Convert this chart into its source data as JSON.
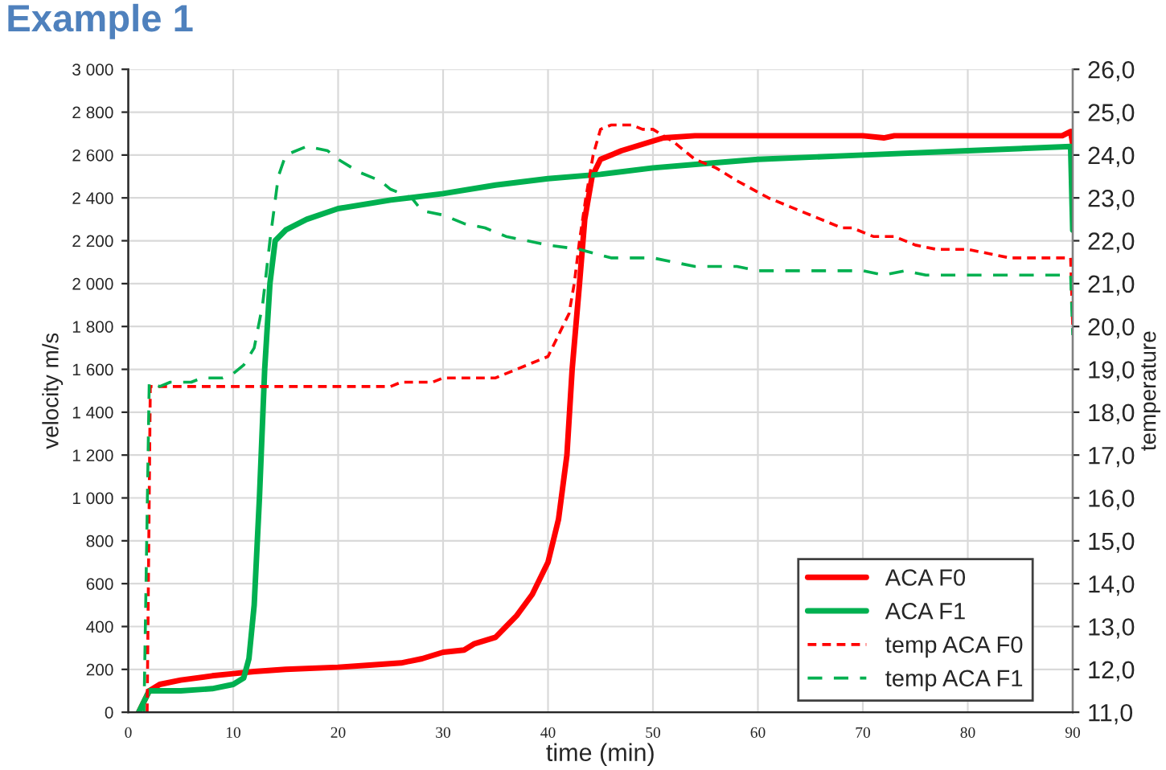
{
  "chart_data": {
    "type": "line",
    "title": "Example 1",
    "xlabel": "time (min)",
    "ylabel": "velocity m/s",
    "y2label": "temperature",
    "xlim": [
      0,
      90
    ],
    "xticks": [
      0,
      10,
      20,
      30,
      40,
      50,
      60,
      70,
      80,
      90
    ],
    "ylim": [
      0,
      3000
    ],
    "yticks": [
      0,
      200,
      400,
      600,
      800,
      {
        "value": 1000,
        "label": "1 000"
      },
      {
        "value": 1200,
        "label": "1 200"
      },
      {
        "value": 1400,
        "label": "1 400"
      },
      {
        "value": 1600,
        "label": "1 600"
      },
      {
        "value": 1800,
        "label": "1 800"
      },
      {
        "value": 2000,
        "label": "2 000"
      },
      {
        "value": 2200,
        "label": "2 200"
      },
      {
        "value": 2400,
        "label": "2 400"
      },
      {
        "value": 2600,
        "label": "2 600"
      },
      {
        "value": 2800,
        "label": "2 800"
      },
      {
        "value": 3000,
        "label": "3 000"
      }
    ],
    "y2lim": [
      11,
      26
    ],
    "y2ticks": [
      {
        "value": 11,
        "label": "11,0"
      },
      {
        "value": 12,
        "label": "12,0"
      },
      {
        "value": 13,
        "label": "13,0"
      },
      {
        "value": 14,
        "label": "14,0"
      },
      {
        "value": 15,
        "label": "15,0"
      },
      {
        "value": 16,
        "label": "16,0"
      },
      {
        "value": 17,
        "label": "17,0"
      },
      {
        "value": 18,
        "label": "18,0"
      },
      {
        "value": 19,
        "label": "19,0"
      },
      {
        "value": 20,
        "label": "20,0"
      },
      {
        "value": 21,
        "label": "21,0"
      },
      {
        "value": 22,
        "label": "22,0"
      },
      {
        "value": 23,
        "label": "23,0"
      },
      {
        "value": 24,
        "label": "24,0"
      },
      {
        "value": 25,
        "label": "25,0"
      },
      {
        "value": 26,
        "label": "26,0"
      }
    ],
    "grid": true,
    "legend": "bottom right",
    "marker": "none",
    "series": [
      {
        "name": "ACA F0",
        "color": "#ff0000",
        "line_style": "solid",
        "x": [
          1,
          2,
          3,
          5,
          8,
          10,
          12,
          15,
          20,
          23,
          26,
          28,
          30,
          32,
          33,
          35,
          36,
          37,
          38.5,
          40,
          41,
          41.8,
          42.3,
          43,
          43.5,
          44.2,
          45,
          47,
          49,
          51,
          54,
          70,
          72,
          73,
          89,
          89.8,
          90
        ],
        "values": [
          0,
          100,
          130,
          150,
          170,
          180,
          190,
          200,
          210,
          220,
          230,
          250,
          280,
          290,
          320,
          350,
          400,
          450,
          550,
          700,
          900,
          1200,
          1600,
          2000,
          2300,
          2500,
          2580,
          2620,
          2650,
          2680,
          2690,
          2690,
          2680,
          2690,
          2690,
          2710,
          2650
        ]
      },
      {
        "name": "ACA F1",
        "color": "#00b050",
        "line_style": "solid",
        "x": [
          1,
          2,
          5,
          8,
          10,
          11,
          11.5,
          12,
          12.5,
          13,
          13.5,
          14,
          15,
          17,
          20,
          25,
          30,
          35,
          40,
          45,
          50,
          55,
          60,
          70,
          80,
          89.8,
          90
        ],
        "values": [
          0,
          100,
          100,
          110,
          130,
          160,
          250,
          500,
          1000,
          1600,
          2000,
          2200,
          2250,
          2300,
          2350,
          2390,
          2420,
          2460,
          2490,
          2510,
          2540,
          2560,
          2580,
          2600,
          2620,
          2640,
          2250
        ]
      },
      {
        "name": "temp ACA F0",
        "color": "#ff0000",
        "line_style": "dotted",
        "axis": "y2",
        "x": [
          1.8,
          2.1,
          25,
          26,
          29,
          30,
          35,
          37,
          39,
          40,
          41,
          42,
          42.5,
          43,
          43.6,
          44.3,
          45,
          46,
          48,
          49,
          50,
          52,
          54,
          56,
          58,
          61,
          63,
          65,
          68,
          69,
          71,
          73,
          75,
          77,
          80,
          82,
          84,
          89.8,
          90
        ],
        "values": [
          11,
          18.6,
          18.6,
          18.7,
          18.7,
          18.8,
          18.8,
          19.0,
          19.2,
          19.3,
          19.8,
          20.3,
          21,
          22,
          23,
          24,
          24.6,
          24.7,
          24.7,
          24.6,
          24.6,
          24.3,
          23.9,
          23.7,
          23.4,
          23.0,
          22.8,
          22.6,
          22.3,
          22.3,
          22.1,
          22.1,
          21.9,
          21.8,
          21.8,
          21.7,
          21.6,
          21.6,
          20.0
        ]
      },
      {
        "name": "temp ACA F1",
        "color": "#00b050",
        "line_style": "dashed",
        "axis": "y2",
        "x": [
          1.5,
          2,
          3,
          4,
          6,
          7,
          9,
          10,
          11,
          12,
          12.8,
          13.5,
          14.3,
          15,
          17,
          19,
          20,
          22,
          24,
          25,
          27,
          28,
          30,
          32,
          34,
          36,
          38,
          40,
          43,
          46,
          50,
          52,
          54,
          58,
          60,
          70,
          72,
          74,
          76,
          89.8,
          90
        ],
        "values": [
          11,
          18.7,
          18.6,
          18.7,
          18.7,
          18.8,
          18.8,
          18.9,
          19.1,
          19.5,
          20.5,
          22,
          23.5,
          24,
          24.2,
          24.1,
          23.9,
          23.6,
          23.4,
          23.2,
          23.0,
          22.7,
          22.6,
          22.4,
          22.3,
          22.1,
          22.0,
          21.9,
          21.8,
          21.6,
          21.6,
          21.5,
          21.4,
          21.4,
          21.3,
          21.3,
          21.2,
          21.3,
          21.2,
          21.2,
          19.8
        ]
      }
    ]
  }
}
